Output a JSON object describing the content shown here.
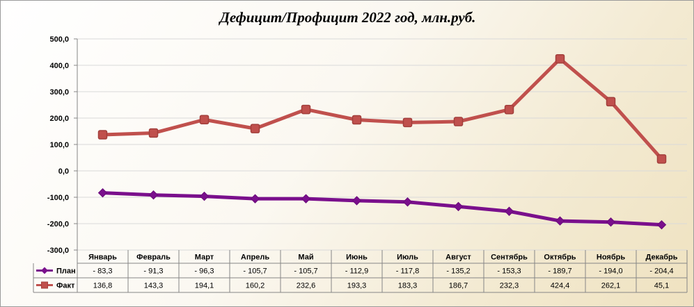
{
  "chart_data": {
    "type": "line",
    "title": "Дефицит/Профицит  2022 год, млн.руб.",
    "categories": [
      "Январь",
      "Февраль",
      "Март",
      "Апрель",
      "Май",
      "Июнь",
      "Июль",
      "Август",
      "Сентябрь",
      "Октябрь",
      "Ноябрь",
      "Декабрь"
    ],
    "ylim": [
      -300,
      500
    ],
    "ytick_labels": [
      "500,0",
      "400,0",
      "300,0",
      "200,0",
      "100,0",
      "0,0",
      "-100,0",
      "-200,0",
      "-300,0"
    ],
    "grid": true,
    "legend": "data-table-left",
    "series": [
      {
        "name": "План",
        "color": "#7a0f8c",
        "values": [
          -83.3,
          -91.3,
          -96.3,
          -105.7,
          -105.7,
          -112.9,
          -117.8,
          -135.2,
          -153.3,
          -189.7,
          -194.0,
          -204.4
        ],
        "labels": [
          "- 83,3",
          "- 91,3",
          "- 96,3",
          "- 105,7",
          "- 105,7",
          "- 112,9",
          "- 117,8",
          "- 135,2",
          "- 153,3",
          "- 189,7",
          "- 194,0",
          "- 204,4"
        ]
      },
      {
        "name": "Факт",
        "color": "#c0504d",
        "values": [
          136.8,
          143.3,
          194.1,
          160.2,
          232.6,
          193.3,
          183.3,
          186.7,
          232.3,
          424.4,
          262.1,
          45.1
        ],
        "labels": [
          "136,8",
          "143,3",
          "194,1",
          "160,2",
          "232,6",
          "193,3",
          "183,3",
          "186,7",
          "232,3",
          "424,4",
          "262,1",
          "45,1"
        ]
      }
    ]
  }
}
